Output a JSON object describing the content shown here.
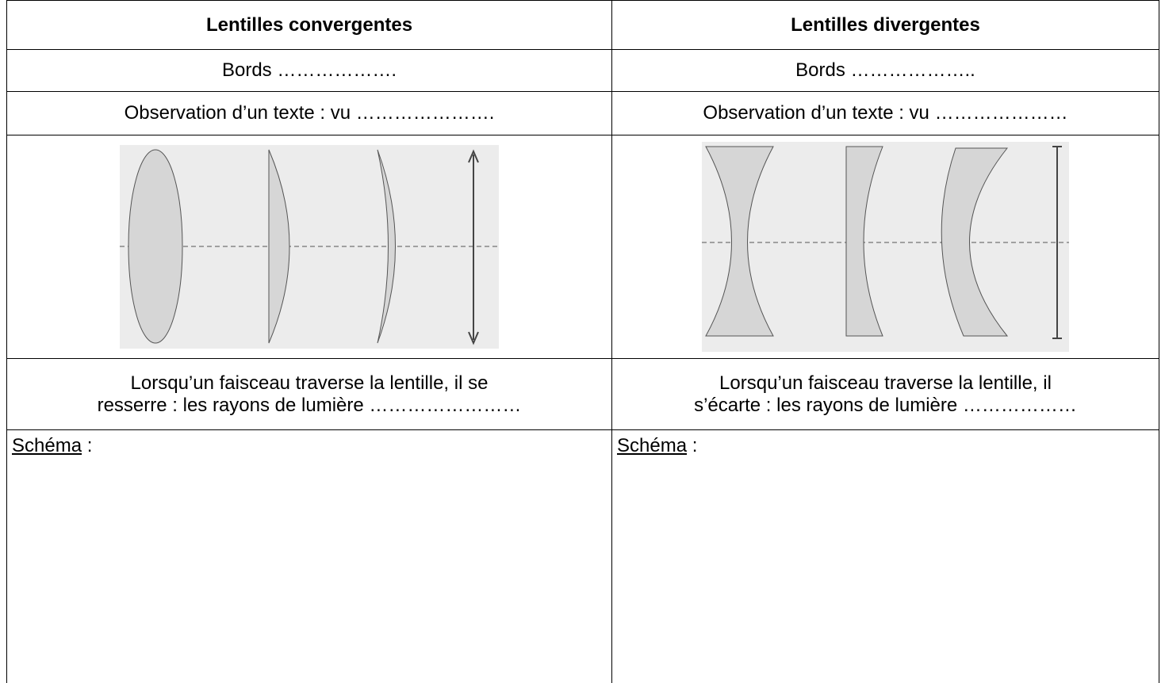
{
  "table": {
    "headers": [
      "Lentilles convergentes",
      "Lentilles divergentes"
    ],
    "rows": [
      [
        "Bords ……………….",
        "Bords ……………….."
      ],
      [
        "Observation d’un texte : vu ………………….",
        "Observation d’un texte : vu …………………"
      ],
      [
        [
          "Lorsqu’un faisceau traverse la lentille, il se",
          "resserre : les rayons de lumière ……………………"
        ],
        [
          "Lorsqu’un faisceau traverse la lentille, il",
          "s’écarte : les rayons de lumière ………………"
        ]
      ],
      [
        {
          "label": "Schéma",
          "suffix": " :"
        },
        {
          "label": "Schéma",
          "suffix": " :"
        }
      ]
    ]
  }
}
